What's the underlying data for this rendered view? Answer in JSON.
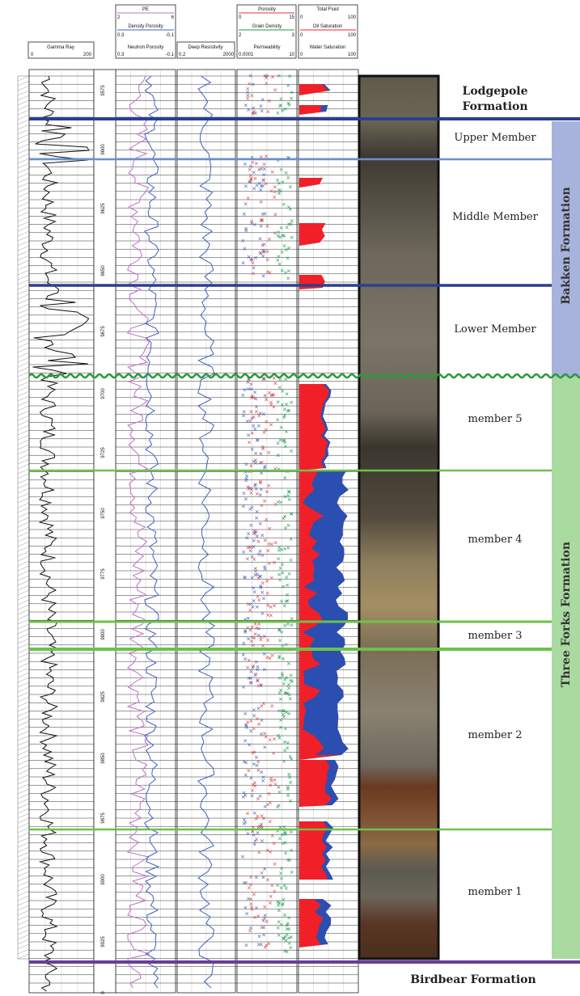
{
  "headers": {
    "gamma": {
      "name": "Gamma Ray",
      "min": "0",
      "max": "200"
    },
    "pe": {
      "name": "PE",
      "min": "2",
      "max": "6"
    },
    "density_porosity": {
      "name": "Density Porosity",
      "min": "0.3",
      "max": "-0.1"
    },
    "neutron_porosity": {
      "name": "Neutron Porosity",
      "min": "0.3",
      "max": "-0.1"
    },
    "deep_resistivity": {
      "name": "Deep Resistivity",
      "min": "0.2",
      "max": "2000"
    },
    "porosity": {
      "name": "Porosity",
      "min": "0",
      "max": "15"
    },
    "grain_density": {
      "name": "Grain Density",
      "min": "2",
      "max": "3"
    },
    "permeability": {
      "name": "Permeability",
      "min": "0.0001",
      "max": "10"
    },
    "total_fluid": {
      "name": "Total Fluid",
      "min": "0",
      "max": "100"
    },
    "oil_saturation": {
      "name": "Oil Saturation",
      "min": "0",
      "max": "100"
    },
    "water_saturation": {
      "name": "Water Saturation",
      "min": "0",
      "max": "100"
    }
  },
  "depth_labels": [
    "9575",
    "9600",
    "9625",
    "9650",
    "9675",
    "9700",
    "9725",
    "9750",
    "9775",
    "9800",
    "9825",
    "9850",
    "9875",
    "9900",
    "9925",
    "0"
  ],
  "zones": {
    "lodgepole_line1": "Lodgepole",
    "lodgepole_line2": "Formation",
    "upper_member": "Upper Member",
    "middle_member": "Middle Member",
    "lower_member": "Lower Member",
    "member5": "member 5",
    "member4": "member 4",
    "member3": "member 3",
    "member2": "member 2",
    "member1": "member 1",
    "birdbear": "Birdbear Formation"
  },
  "formations": {
    "bakken": "Bakken Formation",
    "three_forks": "Three Forks Formation"
  },
  "colors": {
    "bakken_boundary": "#2b3f8f",
    "bakken_internal": "#6b8fcf",
    "unconformity": "#2a9a3c",
    "three_forks_internal": "#6cc24a",
    "birdbear_boundary": "#6a3d9a",
    "bakken_band": "#a7b3dc",
    "three_forks_band": "#a9dba0",
    "oil": "#f01f28",
    "water": "#2a4fb0",
    "porosity_marker": "#d83a3a",
    "permeability_marker": "#3a5ab8",
    "grain_density_marker": "#1a9a4a",
    "gamma_curve": "#111111",
    "neutron_curve": "#c070c8",
    "density_curve": "#4060c0"
  }
}
